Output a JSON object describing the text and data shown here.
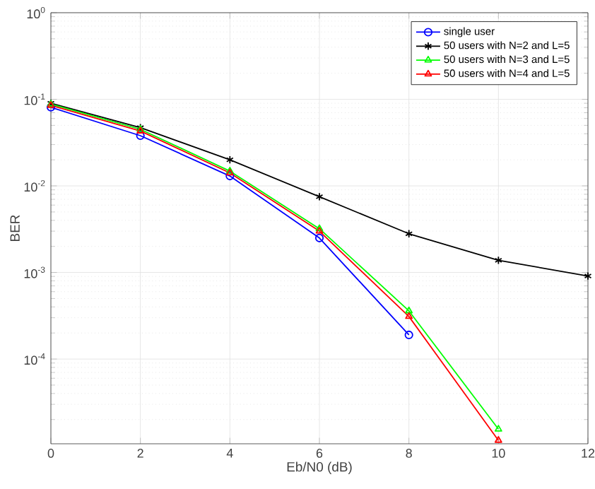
{
  "chart_data": {
    "type": "line",
    "xlabel": "Eb/N0 (dB)",
    "ylabel": "BER",
    "log": "y",
    "grid": true,
    "legend": "top right",
    "xlim": [
      0,
      12
    ],
    "xticks": [
      0,
      2,
      4,
      6,
      8,
      10,
      12
    ],
    "ylim": [
      1.05e-05,
      1
    ],
    "yticks": [
      {
        "value": 1,
        "label": "10$^{0}$"
      },
      {
        "value": 0.1,
        "label": "10$^{-1}$"
      },
      {
        "value": 0.01,
        "label": "10$^{-2}$"
      },
      {
        "value": 0.001,
        "label": "10$^{-3}$"
      },
      {
        "value": 0.0001,
        "label": "10$^{-4}$"
      }
    ],
    "series": [
      {
        "name": "single user",
        "color": "#0000ff",
        "marker": "circle",
        "x": [
          0,
          2,
          4,
          6,
          8
        ],
        "values": [
          0.081,
          0.038,
          0.013,
          0.0025,
          0.00019
        ]
      },
      {
        "name": "50 users with N=2 and L=5",
        "color": "#000000",
        "marker": "cross",
        "x": [
          0,
          2,
          4,
          6,
          8,
          10,
          12
        ],
        "values": [
          0.09,
          0.047,
          0.02,
          0.0075,
          0.0028,
          0.00138,
          0.00091
        ]
      },
      {
        "name": "50 users with N=3 and L=5",
        "color": "#00ff00",
        "marker": "triangle",
        "x": [
          0,
          2,
          4,
          6,
          8,
          10
        ],
        "values": [
          0.088,
          0.045,
          0.0148,
          0.0032,
          0.00036,
          1.55e-05
        ]
      },
      {
        "name": "50 users with N=4 and L=5",
        "color": "#ff0000",
        "marker": "triangle",
        "x": [
          0,
          2,
          4,
          6,
          8,
          10
        ],
        "values": [
          0.085,
          0.043,
          0.0141,
          0.003,
          0.00031,
          1.15e-05
        ]
      }
    ]
  }
}
